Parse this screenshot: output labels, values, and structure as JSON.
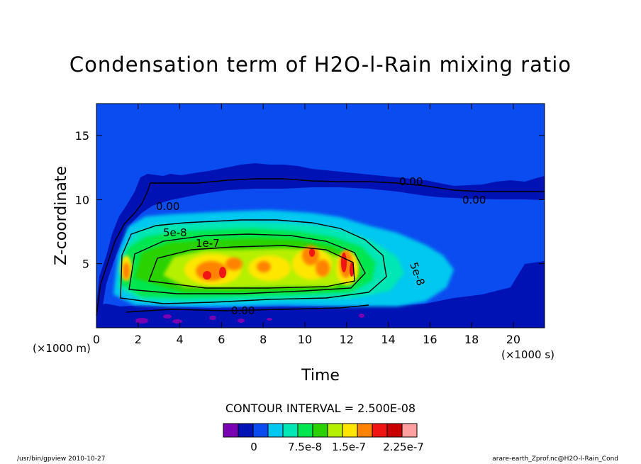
{
  "chart_data": {
    "type": "contour",
    "title": "Condensation term of H2O-l-Rain mixing ratio",
    "xlabel": "Time",
    "ylabel": "Z-coordinate",
    "x_unit_label": "(×1000 s)",
    "y_unit_label": "(×1000 m)",
    "xlim": [
      0,
      21.5
    ],
    "ylim": [
      0,
      17.5
    ],
    "x_ticks": [
      0,
      2,
      4,
      6,
      8,
      10,
      12,
      14,
      16,
      18,
      20
    ],
    "y_ticks": [
      5,
      10,
      15
    ],
    "contour_interval_label": "CONTOUR INTERVAL = 2.500E-08",
    "contour_labels": [
      "0.00",
      "0.00",
      "0.00",
      "0.00",
      "5e-8",
      "1e-7",
      "5e-8"
    ],
    "colorbar": {
      "colors": [
        "#7a00b4",
        "#0012b4",
        "#0a4cf0",
        "#00c8f0",
        "#00e6b4",
        "#00e650",
        "#2cd200",
        "#b4f000",
        "#ffe600",
        "#ff8200",
        "#f01414",
        "#c80000",
        "#ffa0a0"
      ],
      "tick_labels": [
        "0",
        "7.5e-8",
        "1.5e-7",
        "2.25e-7"
      ]
    }
  },
  "footer": {
    "left": "/usr/bin/gpview  2010-10-27",
    "right": "arare-earth_Zprof.nc@H2O-l-Rain_Cond"
  }
}
